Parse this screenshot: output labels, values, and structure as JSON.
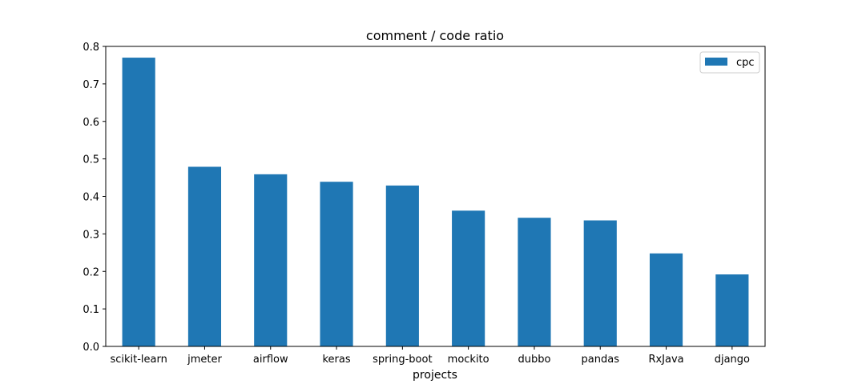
{
  "chart_data": {
    "type": "bar",
    "title": "comment / code ratio",
    "xlabel": "projects",
    "ylabel": "",
    "categories": [
      "scikit-learn",
      "jmeter",
      "airflow",
      "keras",
      "spring-boot",
      "mockito",
      "dubbo",
      "pandas",
      "RxJava",
      "django"
    ],
    "series": [
      {
        "name": "cpc",
        "color": "#1f77b4",
        "values": [
          0.77,
          0.479,
          0.459,
          0.439,
          0.429,
          0.362,
          0.343,
          0.336,
          0.248,
          0.192
        ]
      }
    ],
    "ylim": [
      0,
      0.8
    ],
    "yticks": [
      "0.0",
      "0.1",
      "0.2",
      "0.3",
      "0.4",
      "0.5",
      "0.6",
      "0.7",
      "0.8"
    ],
    "grid": false,
    "legend_position": "top-right"
  }
}
